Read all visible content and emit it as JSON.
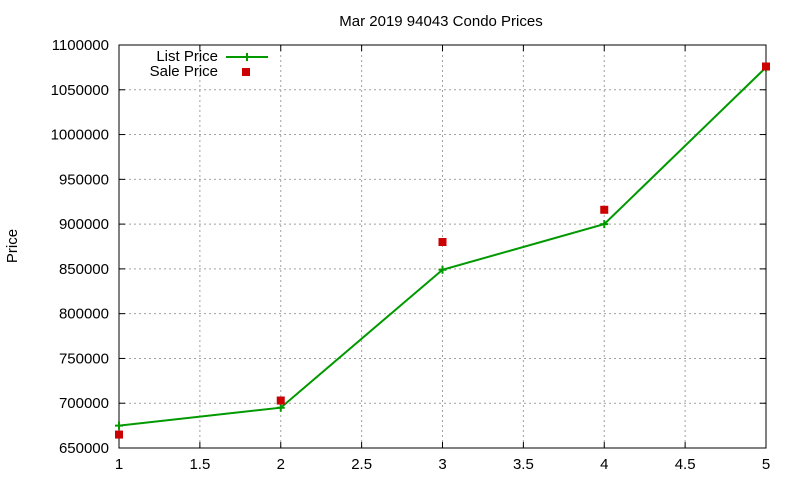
{
  "chart_data": {
    "type": "line",
    "title": "Mar 2019 94043 Condo Prices",
    "xlabel": "",
    "ylabel": "Price",
    "xlim": [
      1,
      5
    ],
    "ylim": [
      650000,
      1100000
    ],
    "xticks": [
      1,
      1.5,
      2,
      2.5,
      3,
      3.5,
      4,
      4.5,
      5
    ],
    "yticks": [
      650000,
      700000,
      750000,
      800000,
      850000,
      900000,
      950000,
      1000000,
      1050000,
      1100000
    ],
    "grid": true,
    "legend_position": "top-left",
    "series": [
      {
        "name": "List Price",
        "style": "line-with-plus-markers",
        "color": "#009900",
        "x": [
          1,
          2,
          3,
          4,
          5
        ],
        "y": [
          675000,
          695000,
          849000,
          900000,
          1075000
        ]
      },
      {
        "name": "Sale Price",
        "style": "square-points",
        "color": "#cc0000",
        "x": [
          1,
          2,
          3,
          4,
          5
        ],
        "y": [
          665000,
          703000,
          880000,
          916000,
          1076000
        ]
      }
    ]
  }
}
